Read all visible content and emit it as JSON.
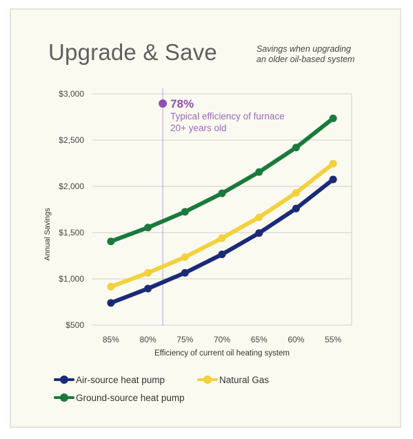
{
  "header": {
    "title": "Upgrade & Save",
    "subtitle_line1": "Savings when upgrading",
    "subtitle_line2": "an older oil-based system"
  },
  "annotation": {
    "value": "78%",
    "line1": "Typical efficiency of furnace",
    "line2": "20+ years old",
    "x_value": 78,
    "color": "#8e4fb0",
    "text_color": "#9a68bc"
  },
  "chart_data": {
    "type": "line",
    "x": [
      85,
      80,
      75,
      70,
      65,
      60,
      55
    ],
    "categories": [
      "85%",
      "80%",
      "75%",
      "70%",
      "65%",
      "60%",
      "55%"
    ],
    "xlabel": "Efficiency of current oil heating system",
    "ylabel": "Annual Savings",
    "ylim": [
      500,
      3000
    ],
    "yticks": [
      500,
      1000,
      1500,
      2000,
      2500,
      3000
    ],
    "ytick_labels": [
      "$500",
      "$1,000",
      "$1,500",
      "$2,000",
      "$2,500",
      "$3,000"
    ],
    "grid": true,
    "series": [
      {
        "name": "Air-source heat pump",
        "color": "#1b2a78",
        "values": [
          740,
          895,
          1065,
          1265,
          1495,
          1760,
          2075
        ]
      },
      {
        "name": "Natural Gas",
        "color": "#f3d13c",
        "values": [
          915,
          1065,
          1235,
          1440,
          1665,
          1930,
          2245
        ]
      },
      {
        "name": "Ground-source heat pump",
        "color": "#1a7a3c",
        "values": [
          1405,
          1555,
          1725,
          1925,
          2155,
          2420,
          2735
        ]
      }
    ]
  }
}
